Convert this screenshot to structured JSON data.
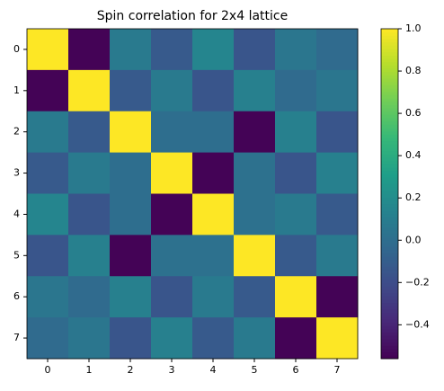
{
  "chart_data": {
    "type": "heatmap",
    "title": "Spin correlation for 2x4 lattice",
    "colormap": "viridis",
    "values": [
      [
        1.0,
        -0.55,
        0.08,
        -0.12,
        0.15,
        -0.15,
        0.05,
        -0.02
      ],
      [
        -0.55,
        1.0,
        -0.12,
        0.08,
        -0.15,
        0.12,
        -0.02,
        0.05
      ],
      [
        0.08,
        -0.12,
        1.0,
        0.0,
        0.0,
        -0.55,
        0.12,
        -0.15
      ],
      [
        -0.12,
        0.08,
        0.0,
        1.0,
        -0.55,
        0.02,
        -0.15,
        0.12
      ],
      [
        0.15,
        -0.15,
        0.0,
        -0.55,
        1.0,
        0.02,
        0.08,
        -0.12
      ],
      [
        -0.15,
        0.12,
        -0.55,
        0.02,
        0.02,
        1.0,
        -0.12,
        0.08
      ],
      [
        0.05,
        -0.02,
        0.12,
        -0.15,
        0.08,
        -0.12,
        1.0,
        -0.55
      ],
      [
        -0.02,
        0.05,
        -0.15,
        0.12,
        -0.12,
        0.08,
        -0.55,
        1.0
      ]
    ],
    "xlim": [
      -0.5,
      7.5
    ],
    "ylim": [
      7.5,
      -0.5
    ],
    "xticks": [
      0,
      1,
      2,
      3,
      4,
      5,
      6,
      7
    ],
    "yticks": [
      0,
      1,
      2,
      3,
      4,
      5,
      6,
      7
    ],
    "clim": [
      -0.56,
      1.0
    ],
    "colorbar_ticks": [
      {
        "value": -0.4,
        "label": "−0.4"
      },
      {
        "value": -0.2,
        "label": "−0.2"
      },
      {
        "value": 0,
        "label": "0.0"
      },
      0.2,
      0.4,
      0.6,
      0.8,
      {
        "value": 1,
        "label": "1.0"
      }
    ]
  }
}
